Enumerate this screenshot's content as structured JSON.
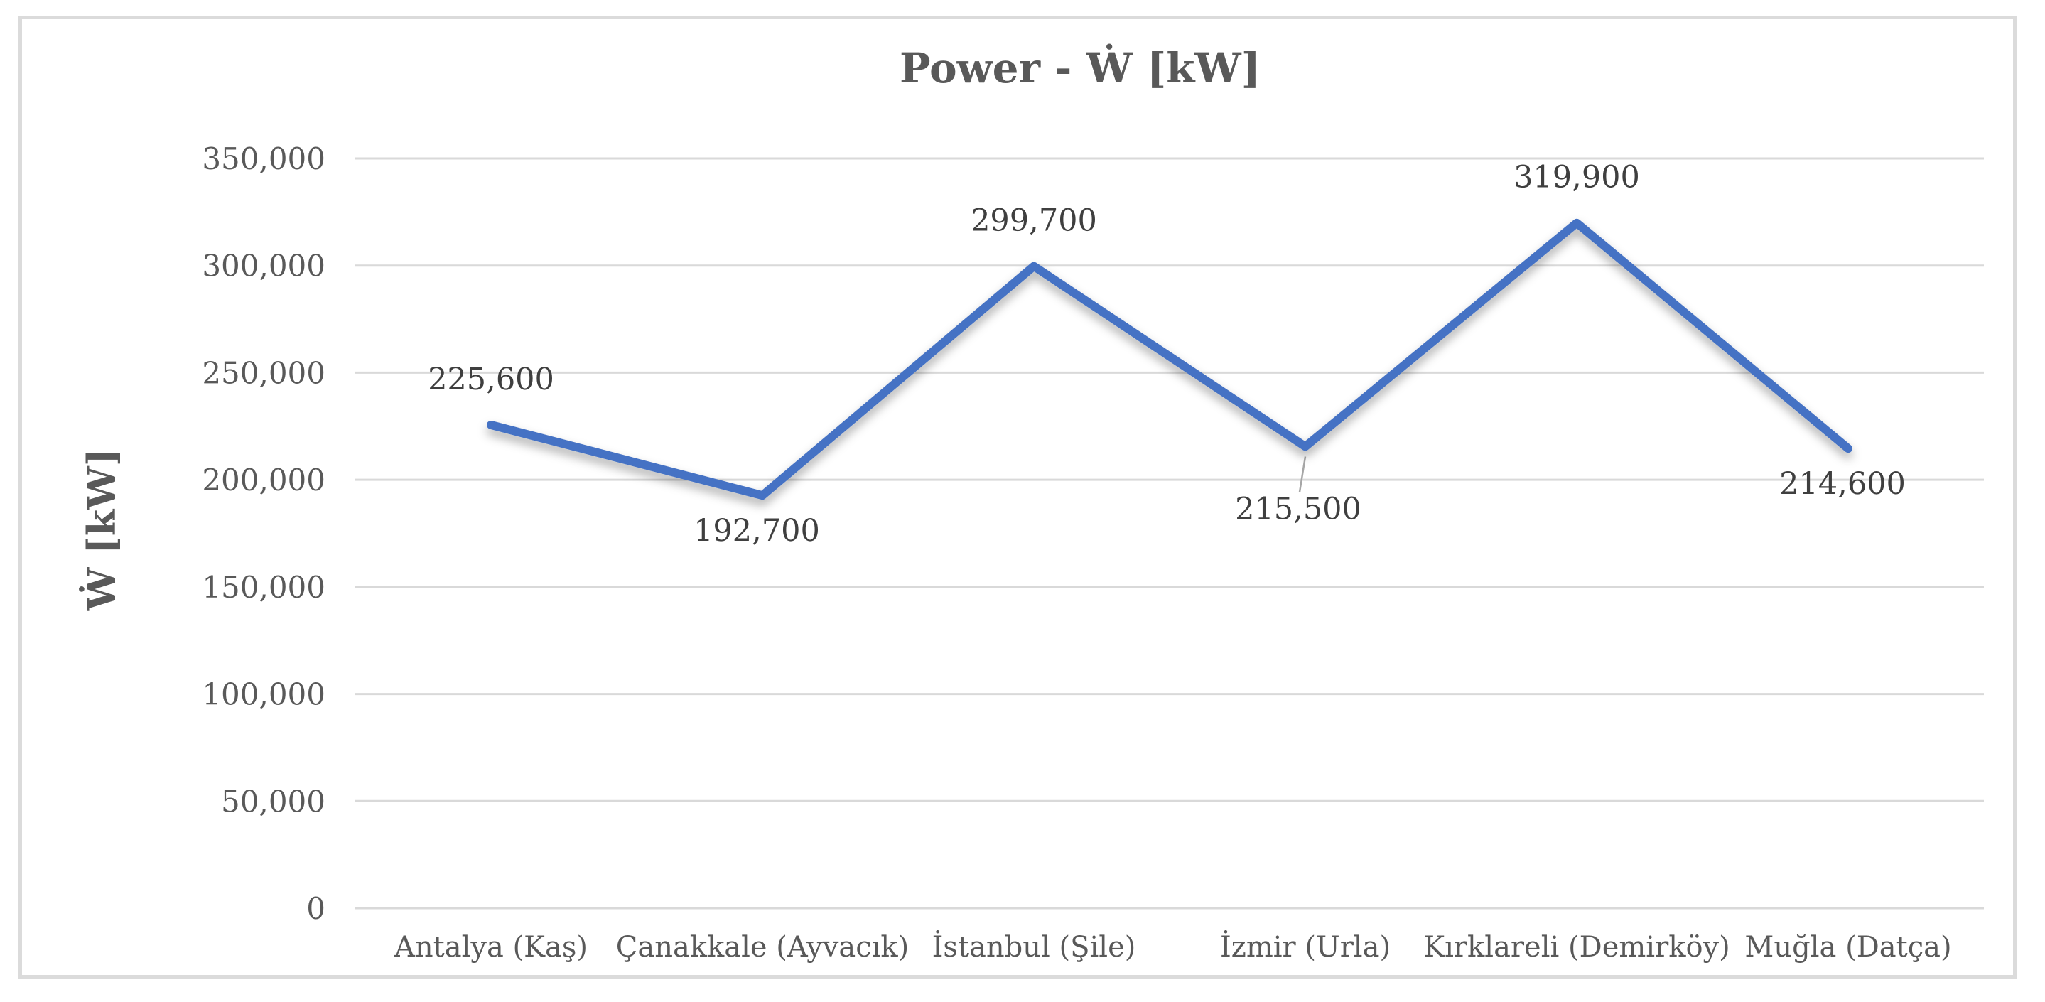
{
  "figure": {
    "title": "Power - Ẇ [kW]",
    "y_axis_title": "Ẇ [kW]"
  },
  "chart_data": {
    "type": "line",
    "title": "Power - Ẇ [kW]",
    "xlabel": "",
    "ylabel": "Ẇ [kW]",
    "categories": [
      "Antalya (Kaş)",
      "Çanakkale (Ayvacık)",
      "İstanbul (Şile)",
      "İzmir (Urla)",
      "Kırklareli (Demirköy)",
      "Muğla (Datça)"
    ],
    "series": [
      {
        "values": [
          225600,
          192700,
          299700,
          215500,
          319900,
          214600
        ]
      }
    ],
    "data_labels": [
      "225,600",
      "192,700",
      "299,700",
      "215,500",
      "319,900",
      "214,600"
    ],
    "data_label_positions": [
      "above",
      "below",
      "above",
      "below_leader",
      "above",
      "below"
    ],
    "y_ticks": [
      0,
      50000,
      100000,
      150000,
      200000,
      250000,
      300000,
      350000
    ],
    "y_tick_labels": [
      "0",
      "50,000",
      "100,000",
      "150,000",
      "200,000",
      "250,000",
      "300,000",
      "350,000"
    ],
    "ylim": [
      0,
      350000
    ],
    "grid": "horizontal-only",
    "legend": "none",
    "colors": {
      "line": "#4472C4",
      "gridline": "#D9D9D9",
      "axis_text": "#595959",
      "data_label_text": "#3F3F3F",
      "title_text": "#595959",
      "frame_border": "#DBDBDB",
      "leader_line": "#A6A6A6",
      "background": "#FFFFFF"
    }
  }
}
